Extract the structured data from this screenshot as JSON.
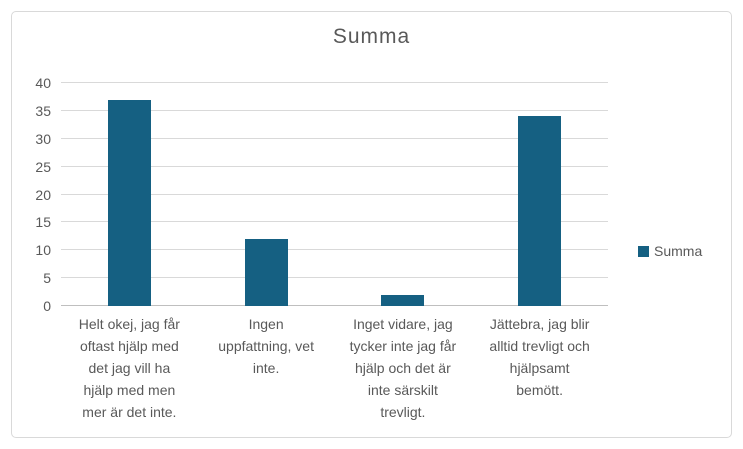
{
  "chart_data": {
    "type": "bar",
    "title": "Summa",
    "categories": [
      "Helt okej, jag får oftast hjälp med det jag vill ha hjälp med men mer är det inte.",
      "Ingen uppfattning, vet inte.",
      "Inget vidare, jag tycker inte jag får hjälp och det är inte särskilt trevligt.",
      "Jättebra, jag blir alltid trevligt och hjälpsamt bemött."
    ],
    "categories_display": [
      "Helt okej, jag får\noftast hjälp med\ndet jag vill ha\nhjälp med men\nmer är det inte.",
      "Ingen\nuppfattning, vet\ninte.",
      "Inget vidare, jag\ntycker inte jag får\nhjälp och det är\ninte särskilt\ntrevligt.",
      "Jättebra, jag blir\nalltid trevligt och\nhjälpsamt\nbemött."
    ],
    "series": [
      {
        "name": "Summa",
        "values": [
          37,
          12,
          2,
          34
        ]
      }
    ],
    "values": [
      37,
      12,
      2,
      34
    ],
    "xlabel": "",
    "ylabel": "",
    "ylim": [
      0,
      40
    ],
    "ytick_step": 5,
    "grid": true,
    "legend_position": "right",
    "bar_color": "#156082"
  },
  "legend": {
    "label": "Summa",
    "swatch_color": "#156082"
  },
  "colors": {
    "bar": "#156082",
    "text": "#595959",
    "gridline": "#D9D9D9",
    "axis_line": "#BFBFBF",
    "frame_border": "#D9D9D9",
    "background": "#ffffff"
  }
}
